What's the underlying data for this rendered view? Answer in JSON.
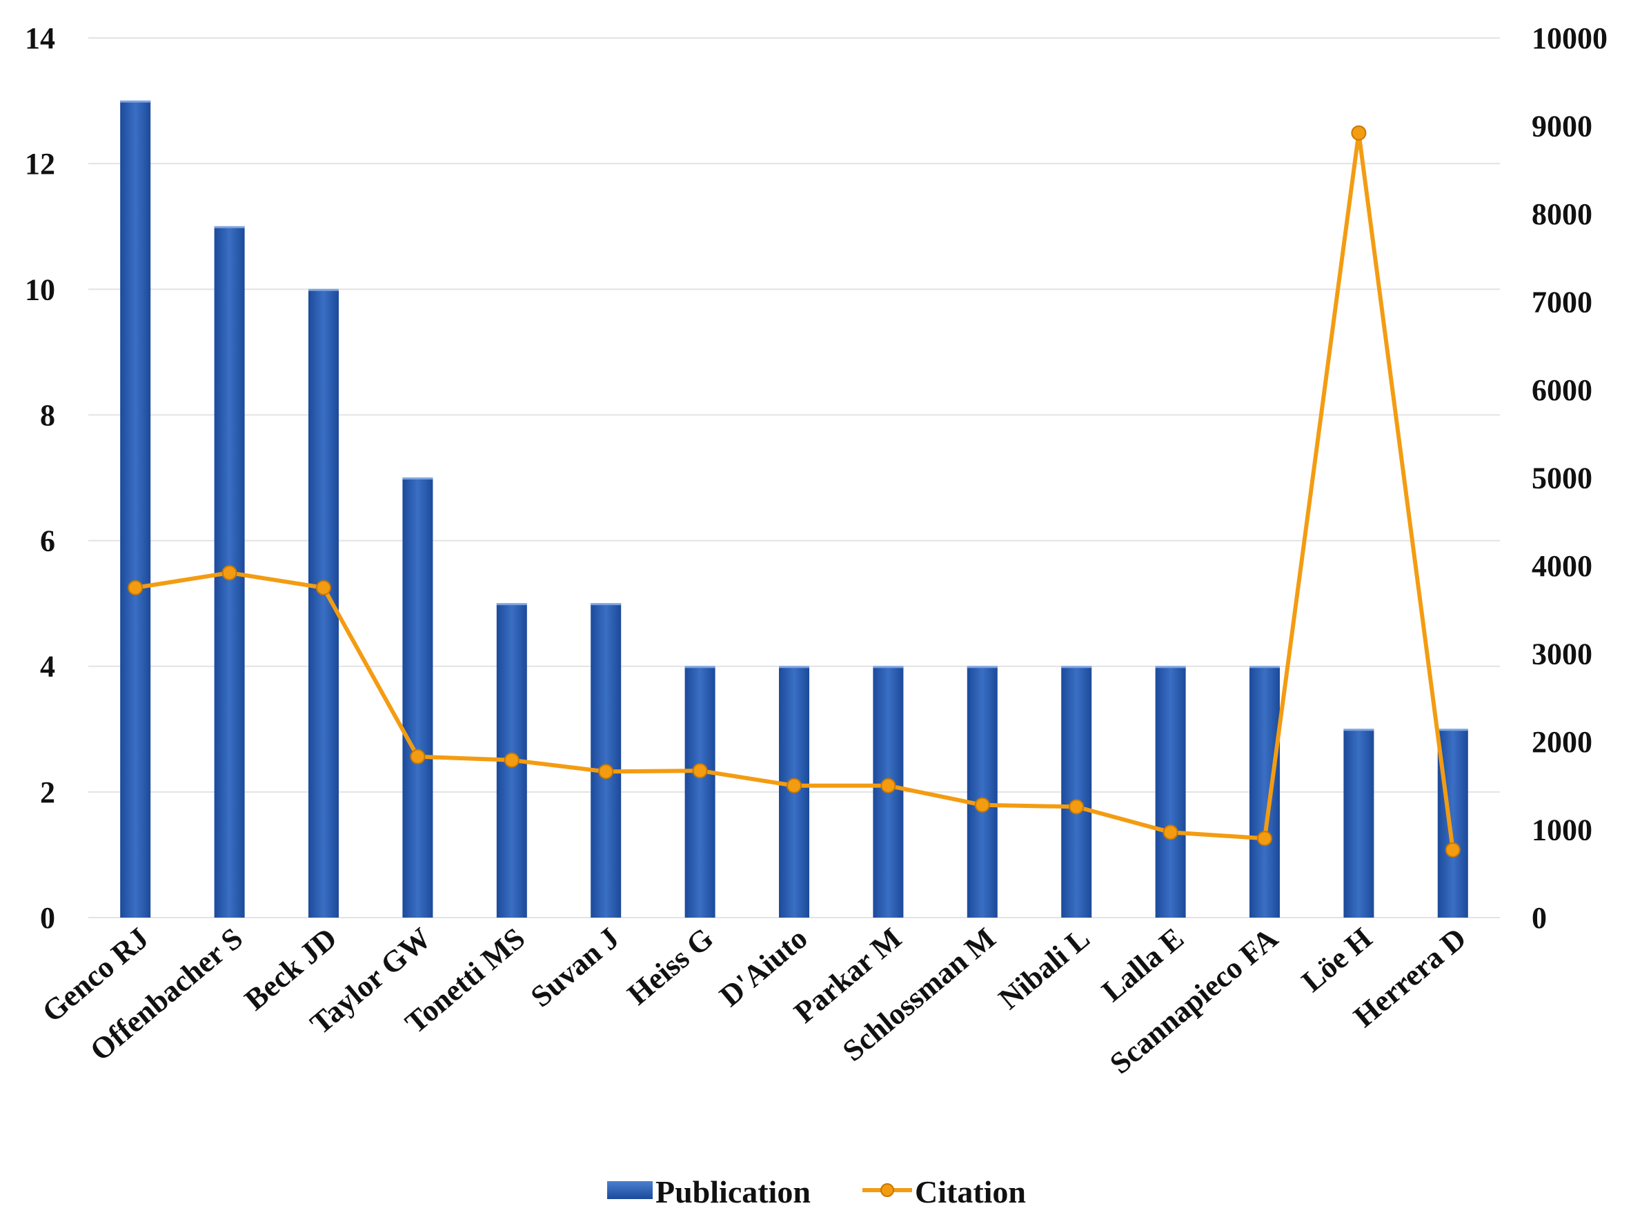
{
  "chart_data": {
    "type": "bar",
    "categories": [
      "Genco RJ",
      "Offenbacher S",
      "Beck JD",
      "Taylor GW",
      "Tonetti MS",
      "Suvan J",
      "Heiss G",
      "D'Aiuto",
      "Parkar M",
      "Schlossman M",
      "Nibali L",
      "Lalla E",
      "Scannapieco FA",
      "Löe H",
      "Herrera D"
    ],
    "series": [
      {
        "name": "Publication",
        "type": "bar",
        "axis": "left",
        "color": "#2f5fb0",
        "values": [
          13,
          11,
          10,
          7,
          5,
          5,
          4,
          4,
          4,
          4,
          4,
          4,
          4,
          3,
          3
        ]
      },
      {
        "name": "Citation",
        "type": "line",
        "axis": "right",
        "color": "#f39c12",
        "values": [
          3750,
          3920,
          3750,
          1830,
          1790,
          1660,
          1670,
          1500,
          1500,
          1280,
          1260,
          970,
          900,
          8920,
          770
        ]
      }
    ],
    "y_left": {
      "ylim": [
        0,
        14
      ],
      "ticks": [
        "0",
        "2",
        "4",
        "6",
        "8",
        "10",
        "12",
        "14"
      ]
    },
    "y_right": {
      "ylim": [
        0,
        10000
      ],
      "ticks": [
        "0",
        "1000",
        "2000",
        "3000",
        "4000",
        "5000",
        "6000",
        "7000",
        "8000",
        "9000",
        "10000"
      ]
    },
    "grid": true,
    "legend": {
      "placement": "bottom",
      "items": [
        "Publication",
        "Citation"
      ]
    }
  }
}
